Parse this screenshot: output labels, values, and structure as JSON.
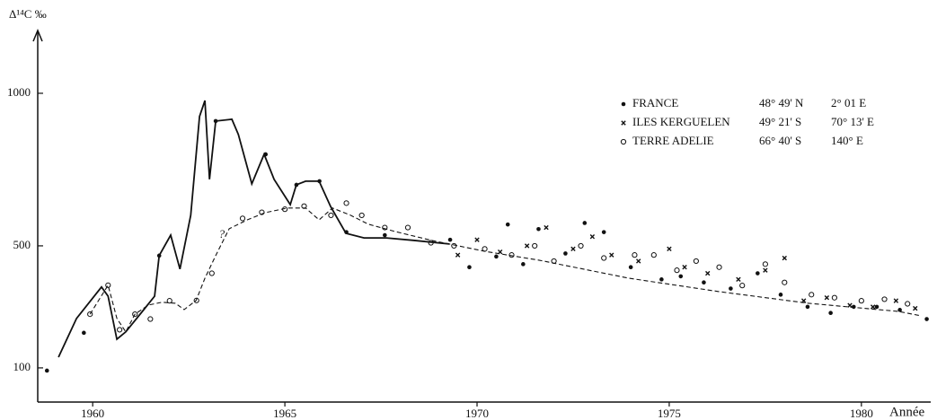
{
  "chart_data": {
    "type": "scatter",
    "ylabel": "Δ¹⁴C ‰",
    "xlabel": "Année",
    "xlim": [
      1958.57,
      1981.78
    ],
    "ylim": [
      -12,
      1194
    ],
    "xticks": [
      1960,
      1965,
      1970,
      1975,
      1980
    ],
    "yticks": [
      100,
      500,
      1000
    ],
    "color": "#111111",
    "series": [
      {
        "name": "FRANCE",
        "latitude": "48° 49' N",
        "longitude": "2° 01 E",
        "marker": "dot",
        "x": [
          1958.81,
          1959.77,
          1961.73,
          1963.2,
          1964.5,
          1965.3,
          1965.9,
          1966.6,
          1967.6,
          1969.3,
          1969.8,
          1970.5,
          1970.8,
          1971.2,
          1971.6,
          1972.3,
          1972.8,
          1973.3,
          1974.0,
          1974.8,
          1975.3,
          1975.9,
          1976.6,
          1977.3,
          1977.9,
          1978.6,
          1979.2,
          1979.8,
          1980.4,
          1981.0,
          1981.7
        ],
        "values": [
          91,
          215,
          468,
          909,
          800,
          700,
          712,
          545,
          535,
          520,
          430,
          465,
          570,
          440,
          555,
          475,
          575,
          545,
          430,
          390,
          400,
          380,
          360,
          410,
          340,
          300,
          280,
          300,
          300,
          290,
          260
        ]
      },
      {
        "name": "ILES KERGUELEN",
        "latitude": "49° 21' S",
        "longitude": "70° 13' E",
        "marker": "cross",
        "x": [
          1969.5,
          1970.0,
          1970.6,
          1971.3,
          1971.8,
          1972.5,
          1973.0,
          1973.5,
          1974.2,
          1975.0,
          1975.4,
          1976.0,
          1976.8,
          1977.5,
          1978.0,
          1978.5,
          1979.1,
          1979.7,
          1980.3,
          1980.9,
          1981.4
        ],
        "values": [
          470,
          520,
          480,
          500,
          560,
          490,
          530,
          470,
          450,
          490,
          430,
          410,
          390,
          420,
          460,
          320,
          330,
          305,
          300,
          320,
          295
        ]
      },
      {
        "name": "TERRE ADELIE",
        "latitude": "66° 40' S",
        "longitude": "140° E",
        "marker": "circle",
        "x": [
          1959.93,
          1960.4,
          1960.7,
          1961.1,
          1961.5,
          1962.0,
          1962.7,
          1963.1,
          1963.9,
          1964.4,
          1965.0,
          1965.5,
          1966.2,
          1966.6,
          1967.0,
          1967.6,
          1968.2,
          1968.8,
          1969.4,
          1970.2,
          1970.9,
          1971.5,
          1972.0,
          1972.7,
          1973.3,
          1974.1,
          1974.6,
          1975.2,
          1975.7,
          1976.3,
          1976.9,
          1977.5,
          1978.0,
          1978.7,
          1979.3,
          1980.0,
          1980.6,
          1981.2
        ],
        "values": [
          276,
          371,
          225,
          276,
          260,
          320,
          321,
          410,
          590,
          610,
          620,
          630,
          600,
          640,
          600,
          560,
          560,
          510,
          500,
          490,
          470,
          500,
          450,
          500,
          460,
          470,
          470,
          420,
          450,
          430,
          370,
          440,
          380,
          340,
          330,
          320,
          325,
          310
        ]
      },
      {
        "style": "solid",
        "x": [
          1959.11,
          1959.58,
          1960.23,
          1960.4,
          1960.63,
          1960.86,
          1961.33,
          1961.61,
          1961.73,
          1962.03,
          1962.27,
          1962.55,
          1962.78,
          1962.92,
          1963.04,
          1963.2,
          1963.62,
          1963.79,
          1964.14,
          1964.46,
          1964.72,
          1965.14,
          1965.3,
          1965.54,
          1965.89,
          1966.19,
          1966.59,
          1967.06,
          1967.64,
          1968.34,
          1969.28
        ],
        "values": [
          135,
          262,
          365,
          335,
          194,
          218,
          291,
          335,
          468,
          535,
          424,
          600,
          924,
          976,
          718,
          909,
          915,
          865,
          703,
          800,
          718,
          635,
          700,
          712,
          712,
          629,
          541,
          526,
          526,
          518,
          506
        ]
      },
      {
        "style": "dashed",
        "x": [
          1959.93,
          1960.4,
          1960.63,
          1960.86,
          1961.1,
          1961.45,
          1961.8,
          1962.15,
          1962.38,
          1962.69,
          1962.92,
          1963.2,
          1963.55,
          1964.02,
          1964.49,
          1965.07,
          1965.54,
          1965.89,
          1966.24,
          1966.71,
          1967.17,
          1967.87,
          1968.81,
          1970.21,
          1971.61,
          1973.95,
          1976.29,
          1978.62,
          1980.96,
          1981.54
        ],
        "values": [
          276,
          371,
          262,
          218,
          276,
          306,
          315,
          312,
          291,
          321,
          394,
          468,
          556,
          585,
          609,
          624,
          624,
          585,
          624,
          600,
          571,
          547,
          518,
          482,
          453,
          394,
          350,
          312,
          285,
          271
        ]
      }
    ],
    "annotations": [
      {
        "text": "?",
        "x": 1963.36,
        "y": 535
      }
    ]
  }
}
